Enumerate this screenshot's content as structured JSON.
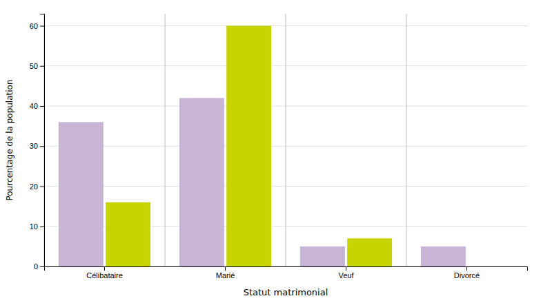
{
  "chart_data": {
    "type": "bar",
    "categories": [
      "Célibataire",
      "Marié",
      "Veuf",
      "Divorcé"
    ],
    "series": [
      {
        "color": "#C8B4D4",
        "values": [
          36,
          42,
          5,
          5
        ]
      },
      {
        "color": "#C8D400",
        "values": [
          16,
          60,
          7,
          0
        ]
      }
    ],
    "xlabel": "Statut matrimonial",
    "ylabel": "Pourcentage de la population",
    "ylim": [
      0,
      63
    ],
    "yticks": [
      0,
      10,
      20,
      30,
      40,
      50,
      60
    ],
    "grid": true
  }
}
